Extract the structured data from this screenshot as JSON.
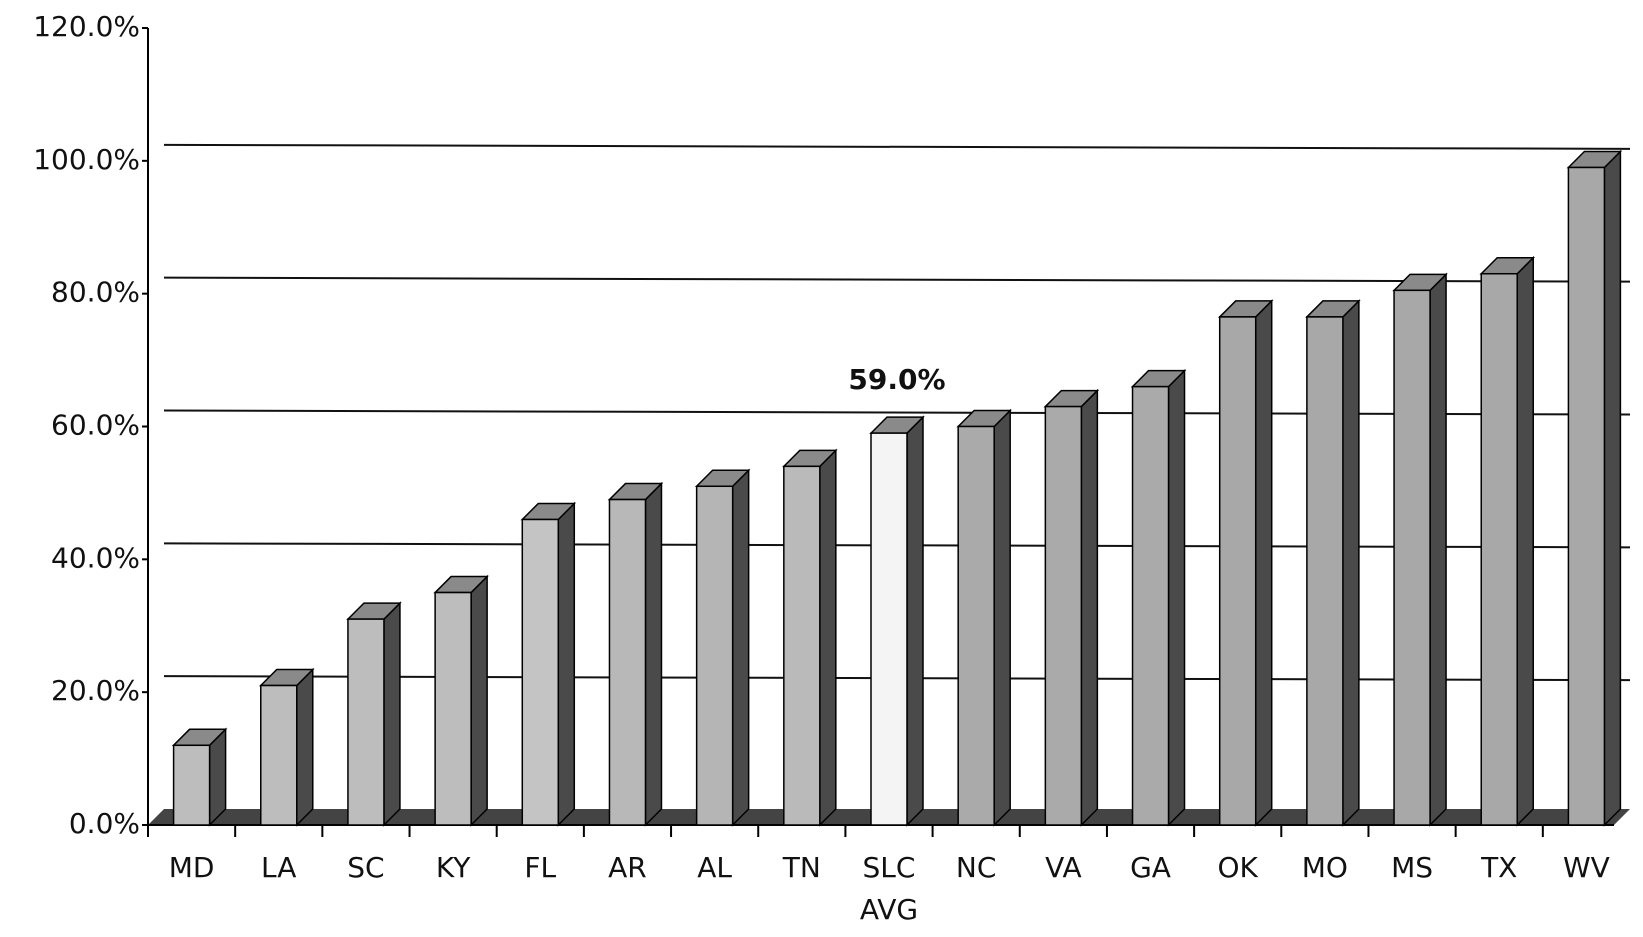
{
  "chart_data": {
    "type": "bar3d",
    "categories": [
      "MD",
      "LA",
      "SC",
      "KY",
      "FL",
      "AR",
      "AL",
      "TN",
      "SLC AVG",
      "NC",
      "VA",
      "GA",
      "OK",
      "MO",
      "MS",
      "TX",
      "WV"
    ],
    "values": [
      12,
      21,
      31,
      35,
      46,
      49,
      51,
      54,
      59,
      60,
      63,
      66,
      76.5,
      76.5,
      80.5,
      83,
      99
    ],
    "value_labels": [
      null,
      null,
      null,
      null,
      null,
      null,
      null,
      null,
      "59.0%",
      null,
      null,
      null,
      null,
      null,
      null,
      null,
      null
    ],
    "colors": [
      "#bdbdbd",
      "#bdbdbd",
      "#bdbdbd",
      "#bdbdbd",
      "#c4c4c4",
      "#b8b8b8",
      "#b5b5b5",
      "#bababa",
      "#f4f4f4",
      "#aaaaaa",
      "#aaaaaa",
      "#aaaaaa",
      "#a8a8a8",
      "#a8a8a8",
      "#a8a8a8",
      "#a8a8a8",
      "#a8a8a8"
    ],
    "ylim": [
      0,
      120
    ],
    "yticks": [
      {
        "value": 0,
        "label": "0.0%"
      },
      {
        "value": 20,
        "label": "20.0%"
      },
      {
        "value": 40,
        "label": "40.0%"
      },
      {
        "value": 60,
        "label": "60.0%"
      },
      {
        "value": 80,
        "label": "80.0%"
      },
      {
        "value": 100,
        "label": "100.0%"
      },
      {
        "value": 120,
        "label": "120.0%"
      }
    ],
    "grid": true
  }
}
